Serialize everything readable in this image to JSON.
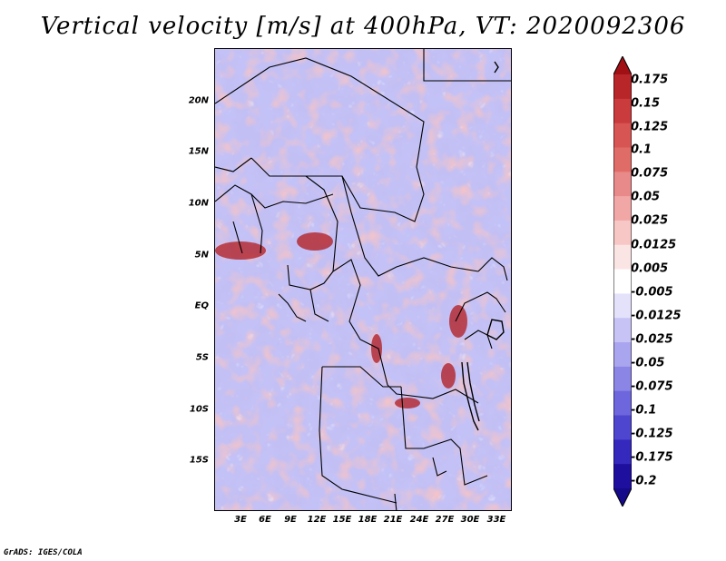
{
  "title": "Vertical velocity [m/s] at 400hPa, VT: 2020092306",
  "lat_labels": [
    "20N",
    "15N",
    "10N",
    "5N",
    "EQ",
    "5S",
    "10S",
    "15S"
  ],
  "lon_labels": [
    "3E",
    "6E",
    "9E",
    "12E",
    "15E",
    "18E",
    "21E",
    "24E",
    "27E",
    "30E",
    "33E"
  ],
  "colorbar": {
    "labels": [
      "0.175",
      "0.15",
      "0.125",
      "0.1",
      "0.075",
      "0.05",
      "0.025",
      "0.0125",
      "0.005",
      "-0.005",
      "-0.0125",
      "-0.025",
      "-0.05",
      "-0.075",
      "-0.1",
      "-0.125",
      "-0.175",
      "-0.2"
    ],
    "colors": [
      "#a01015",
      "#b8262a",
      "#c93b3c",
      "#d75552",
      "#e06c68",
      "#e8898a",
      "#f2a7a7",
      "#f7c7c5",
      "#fbe5e4",
      "#ffffff",
      "#e4e2fb",
      "#c7c4f5",
      "#a9a5ee",
      "#8b86e6",
      "#6d66dc",
      "#4f46cf",
      "#3528bd",
      "#1f0f9e",
      "#150a8a"
    ]
  },
  "credit": "GrADS: IGES/COLA"
}
